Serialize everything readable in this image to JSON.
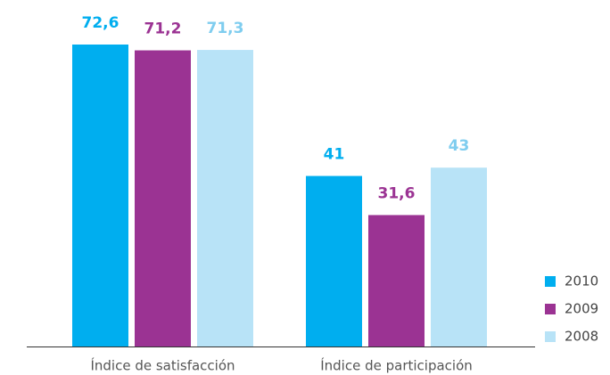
{
  "chart_data": {
    "type": "bar",
    "categories": [
      "Índice de satisfacción",
      "Índice de participación"
    ],
    "series": [
      {
        "name": "2010",
        "color": "#00aeef",
        "values": [
          72.6,
          41
        ],
        "value_labels": [
          "72,6",
          "41"
        ]
      },
      {
        "name": "2009",
        "color": "#9b3393",
        "values": [
          71.2,
          31.6
        ],
        "value_labels": [
          "71,2",
          "31,6"
        ]
      },
      {
        "name": "2008",
        "color": "#b8e3f7",
        "values": [
          71.3,
          43
        ],
        "value_labels": [
          "71,3",
          "43"
        ]
      }
    ],
    "legend": "lower right"
  }
}
